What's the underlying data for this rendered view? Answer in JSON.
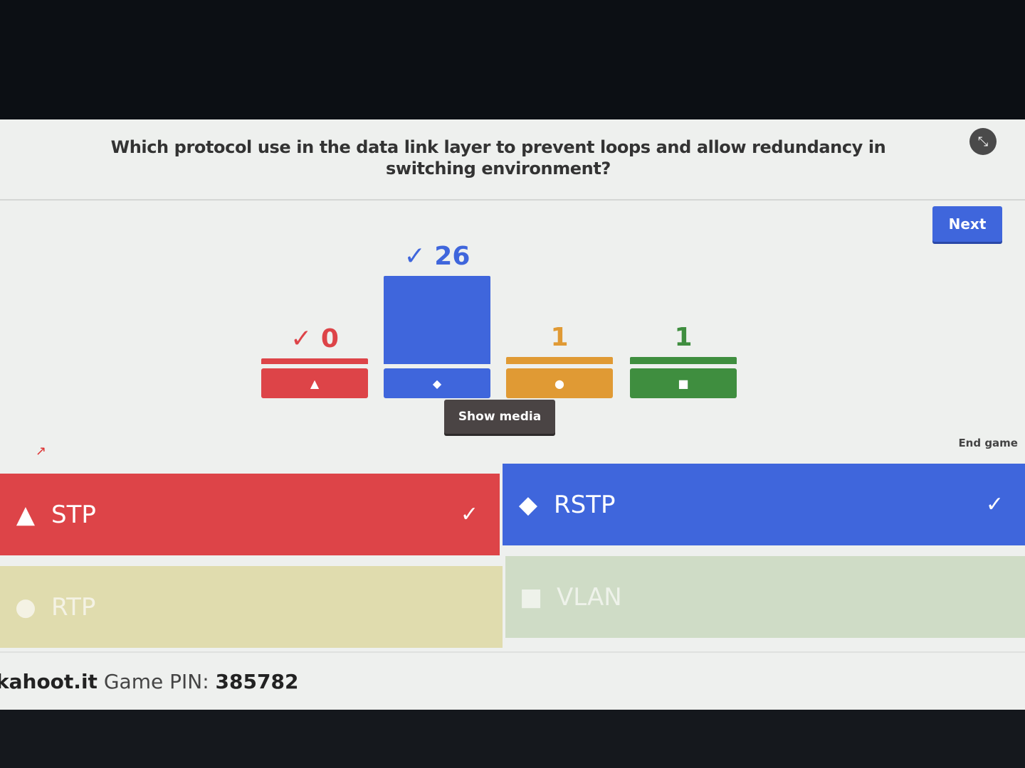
{
  "question": {
    "text": "Which protocol use in the data link layer to prevent loops and allow redundancy in switching environment?"
  },
  "controls": {
    "next_label": "Next",
    "show_media_label": "Show media",
    "end_game_label": "End game"
  },
  "chart_data": {
    "type": "bar",
    "categories": [
      "triangle",
      "diamond",
      "circle",
      "square"
    ],
    "values": [
      0,
      26,
      1,
      1
    ],
    "correct": [
      true,
      true,
      false,
      false
    ],
    "colors": [
      "#dd4448",
      "#3f66dc",
      "#e09a34",
      "#3f8e3f"
    ]
  },
  "results": [
    {
      "count_text": "✓ 0",
      "shape_glyph": "▲"
    },
    {
      "count_text": "✓ 26",
      "shape_glyph": "◆"
    },
    {
      "count_text": "1",
      "shape_glyph": "●"
    },
    {
      "count_text": "1",
      "shape_glyph": "■"
    }
  ],
  "answers": [
    {
      "label": "STP",
      "shape_glyph": "▲",
      "check": "✓",
      "icon": "triangle-icon"
    },
    {
      "label": "RSTP",
      "shape_glyph": "◆",
      "check": "✓",
      "icon": "diamond-icon"
    },
    {
      "label": "RTP",
      "shape_glyph": "●",
      "icon": "circle-icon"
    },
    {
      "label": "VLAN",
      "shape_glyph": "■",
      "icon": "square-icon"
    }
  ],
  "footer": {
    "brand": "kahoot.it",
    "pin_label": "Game PIN:",
    "pin": "385782"
  }
}
